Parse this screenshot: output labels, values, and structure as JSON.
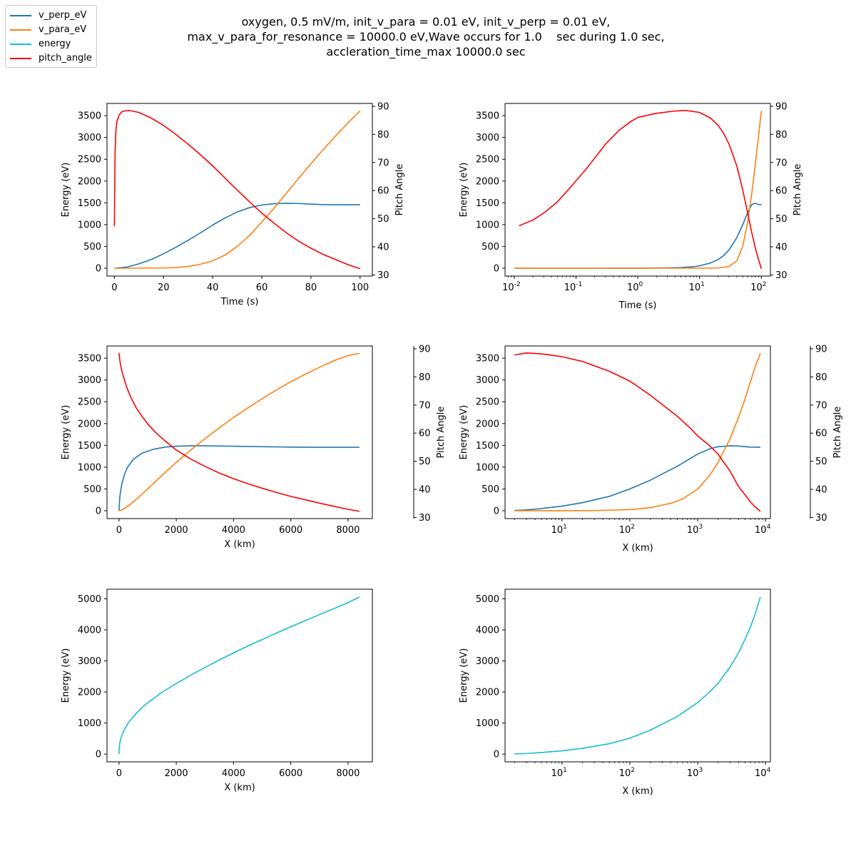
{
  "title_lines": [
    "oxygen, 0.5 mV/m, init_v_para = 0.01 eV, init_v_perp = 0.01 eV,",
    "max_v_para_for_resonance = 10000.0 eV,Wave occurs for 1.0    sec during 1.0 sec,",
    "accleration_time_max 10000.0 sec"
  ],
  "legend": [
    {
      "name": "v_perp_eV",
      "color": "#1f77b4"
    },
    {
      "name": "v_para_eV",
      "color": "#ff7f0e"
    },
    {
      "name": "energy",
      "color": "#17becf"
    },
    {
      "name": "pitch_angle",
      "color": "#ff0000"
    }
  ],
  "chart_data": [
    {
      "type": "line",
      "xscale": "linear",
      "xlabel": "Time (s)",
      "ylabel": "Energy (eV)",
      "y2label": "Pitch Angle",
      "xlim": [
        -3,
        105
      ],
      "ylim": [
        -180,
        3780
      ],
      "y2lim": [
        29.6,
        91
      ],
      "xticks": [
        0,
        20,
        40,
        60,
        80,
        100
      ],
      "yticks": [
        0,
        500,
        1000,
        1500,
        2000,
        2500,
        3000,
        3500
      ],
      "y2ticks": [
        30,
        40,
        50,
        60,
        70,
        80,
        90
      ],
      "series": [
        {
          "name": "v_perp_eV",
          "axis": "left",
          "color": "#1f77b4",
          "x": [
            0,
            5,
            10,
            15,
            20,
            25,
            30,
            35,
            40,
            45,
            50,
            55,
            60,
            65,
            70,
            75,
            80,
            85,
            90,
            95,
            100
          ],
          "y": [
            0,
            25,
            100,
            200,
            330,
            480,
            640,
            810,
            990,
            1150,
            1290,
            1390,
            1450,
            1480,
            1490,
            1485,
            1470,
            1460,
            1455,
            1455,
            1458
          ]
        },
        {
          "name": "v_para_eV",
          "axis": "left",
          "color": "#ff7f0e",
          "x": [
            0,
            10,
            20,
            25,
            30,
            35,
            40,
            45,
            50,
            55,
            60,
            65,
            70,
            75,
            80,
            85,
            90,
            95,
            100
          ],
          "y": [
            0,
            2,
            6,
            15,
            40,
            90,
            170,
            300,
            500,
            750,
            1060,
            1380,
            1720,
            2060,
            2400,
            2720,
            3030,
            3330,
            3610
          ]
        },
        {
          "name": "pitch_angle",
          "axis": "right",
          "color": "#ff0000",
          "x": [
            0,
            0.3,
            0.6,
            1,
            2,
            3,
            4,
            6,
            10,
            15,
            20,
            25,
            30,
            35,
            40,
            45,
            50,
            55,
            60,
            65,
            70,
            75,
            80,
            85,
            90,
            95,
            100
          ],
          "y": [
            47.3,
            74,
            81,
            84.5,
            87,
            88,
            88.3,
            88.5,
            87.8,
            85.8,
            83.2,
            80,
            76.5,
            72.8,
            68.8,
            64.5,
            60.2,
            56,
            52,
            48.4,
            45,
            42,
            39.5,
            37.3,
            35.5,
            33.7,
            32.2
          ]
        }
      ]
    },
    {
      "type": "line",
      "xscale": "log",
      "xlabel": "Time (s)",
      "ylabel": "Energy (eV)",
      "y2label": "Pitch Angle",
      "xlim": [
        0.0071,
        140
      ],
      "ylim": [
        -180,
        3780
      ],
      "y2lim": [
        29.6,
        91
      ],
      "xticks": [
        0.01,
        0.1,
        1,
        10,
        100
      ],
      "xticklabels": [
        "10-2",
        "10-1",
        "100",
        "101",
        "102"
      ],
      "yticks": [
        0,
        500,
        1000,
        1500,
        2000,
        2500,
        3000,
        3500
      ],
      "y2ticks": [
        30,
        40,
        50,
        60,
        70,
        80,
        90
      ],
      "series": [
        {
          "name": "v_perp_eV",
          "axis": "left",
          "color": "#1f77b4",
          "x": [
            0.01,
            0.1,
            1,
            3,
            5,
            8,
            10,
            15,
            20,
            25,
            30,
            40,
            50,
            60,
            70,
            80,
            90,
            100
          ],
          "y": [
            0,
            0,
            1,
            8,
            15,
            35,
            55,
            120,
            200,
            300,
            420,
            700,
            1000,
            1280,
            1460,
            1490,
            1460,
            1458
          ]
        },
        {
          "name": "v_para_eV",
          "axis": "left",
          "color": "#ff7f0e",
          "x": [
            0.01,
            1,
            10,
            20,
            30,
            40,
            50,
            60,
            70,
            80,
            90,
            100
          ],
          "y": [
            0,
            0,
            2,
            6,
            40,
            170,
            500,
            1060,
            1720,
            2400,
            3030,
            3610
          ]
        },
        {
          "name": "pitch_angle",
          "axis": "right",
          "color": "#ff0000",
          "x": [
            0.012,
            0.02,
            0.03,
            0.05,
            0.08,
            0.1,
            0.15,
            0.2,
            0.3,
            0.5,
            0.8,
            1,
            2,
            4,
            6,
            10,
            15,
            20,
            25,
            30,
            40,
            50,
            60,
            70,
            80,
            90,
            100
          ],
          "y": [
            47.5,
            49.5,
            52,
            56,
            61,
            63.5,
            68,
            71.5,
            76.5,
            81.5,
            84.8,
            86,
            87.5,
            88.3,
            88.5,
            87.8,
            85.8,
            83.2,
            80,
            76.5,
            68.8,
            60.2,
            52,
            45,
            39.5,
            35.5,
            32.2
          ]
        }
      ]
    },
    {
      "type": "line",
      "xscale": "linear",
      "xlabel": "X (km)",
      "ylabel": "Energy (eV)",
      "y2label": "Pitch Angle",
      "xlim": [
        -420,
        8850
      ],
      "ylim": [
        -180,
        3780
      ],
      "y2lim": [
        29.6,
        91
      ],
      "xticks": [
        0,
        2000,
        4000,
        6000,
        8000
      ],
      "yticks": [
        0,
        500,
        1000,
        1500,
        2000,
        2500,
        3000,
        3500
      ],
      "y2ticks": [
        30,
        40,
        50,
        60,
        70,
        80,
        90
      ],
      "series": [
        {
          "name": "v_perp_eV",
          "axis": "left",
          "color": "#1f77b4",
          "x": [
            0,
            20,
            50,
            100,
            200,
            300,
            500,
            800,
            1200,
            1600,
            2000,
            2500,
            3000,
            3500,
            4000,
            5000,
            6000,
            7000,
            8000,
            8400
          ],
          "y": [
            0,
            250,
            430,
            620,
            850,
            1000,
            1180,
            1320,
            1410,
            1460,
            1480,
            1490,
            1490,
            1485,
            1480,
            1470,
            1460,
            1455,
            1455,
            1458
          ]
        },
        {
          "name": "v_para_eV",
          "axis": "left",
          "color": "#ff7f0e",
          "x": [
            0,
            100,
            200,
            400,
            600,
            800,
            1000,
            1500,
            2000,
            2500,
            3000,
            3500,
            4000,
            4500,
            5000,
            5500,
            6000,
            6500,
            7000,
            7500,
            8000,
            8400
          ],
          "y": [
            0,
            20,
            60,
            150,
            260,
            380,
            500,
            810,
            1110,
            1390,
            1650,
            1900,
            2140,
            2360,
            2570,
            2770,
            2960,
            3130,
            3290,
            3440,
            3560,
            3610
          ]
        },
        {
          "name": "pitch_angle",
          "axis": "right",
          "color": "#ff0000",
          "x": [
            0,
            20,
            50,
            100,
            200,
            300,
            400,
            600,
            800,
            1000,
            1300,
            1600,
            2000,
            2500,
            3000,
            3500,
            4000,
            4500,
            5000,
            5500,
            6000,
            6500,
            7000,
            7500,
            8000,
            8400
          ],
          "y": [
            88.5,
            86.5,
            84.5,
            82,
            78.5,
            75.5,
            73,
            69,
            66,
            63.3,
            60,
            57.3,
            54,
            50.8,
            48.2,
            45.8,
            43.8,
            42,
            40.4,
            38.9,
            37.5,
            36.3,
            35.1,
            34,
            32.9,
            32.2
          ]
        }
      ]
    },
    {
      "type": "line",
      "xscale": "log",
      "xlabel": "X (km)",
      "ylabel": "Energy (eV)",
      "y2label": "Pitch Angle",
      "xlim": [
        1.45,
        11800
      ],
      "ylim": [
        -180,
        3780
      ],
      "y2lim": [
        29.6,
        91
      ],
      "xticks": [
        10,
        100,
        1000,
        10000
      ],
      "xticklabels": [
        "101",
        "102",
        "103",
        "104"
      ],
      "yticks": [
        0,
        500,
        1000,
        1500,
        2000,
        2500,
        3000,
        3500
      ],
      "y2ticks": [
        30,
        40,
        50,
        60,
        70,
        80,
        90
      ],
      "series": [
        {
          "name": "v_perp_eV",
          "axis": "left",
          "color": "#1f77b4",
          "x": [
            2,
            3,
            5,
            10,
            20,
            50,
            100,
            200,
            500,
            1000,
            1500,
            2000,
            3000,
            4000,
            5000,
            6000,
            8400
          ],
          "y": [
            5,
            20,
            50,
            105,
            185,
            330,
            500,
            700,
            1020,
            1300,
            1420,
            1470,
            1490,
            1485,
            1470,
            1460,
            1458
          ]
        },
        {
          "name": "v_para_eV",
          "axis": "left",
          "color": "#ff7f0e",
          "x": [
            2,
            10,
            30,
            100,
            200,
            400,
            600,
            1000,
            1500,
            2000,
            3000,
            4000,
            5000,
            6000,
            7000,
            8400
          ],
          "y": [
            0,
            1,
            4,
            25,
            70,
            170,
            270,
            500,
            810,
            1110,
            1650,
            2140,
            2570,
            2960,
            3290,
            3610
          ]
        },
        {
          "name": "pitch_angle",
          "axis": "right",
          "color": "#ff0000",
          "x": [
            2,
            3,
            5,
            10,
            20,
            50,
            100,
            200,
            500,
            800,
            1000,
            1500,
            2000,
            3000,
            4000,
            5000,
            6000,
            7000,
            8400
          ],
          "y": [
            87.8,
            88.5,
            88.2,
            87.2,
            85.5,
            82,
            78.5,
            73.5,
            66,
            61.5,
            59,
            55.5,
            52.5,
            46.5,
            41,
            38,
            35.5,
            33.8,
            32.2
          ]
        }
      ]
    },
    {
      "type": "line",
      "xscale": "linear",
      "xlabel": "X (km)",
      "ylabel": "Energy (eV)",
      "xlim": [
        -420,
        8850
      ],
      "ylim": [
        -250,
        5310
      ],
      "xticks": [
        0,
        2000,
        4000,
        6000,
        8000
      ],
      "yticks": [
        0,
        1000,
        2000,
        3000,
        4000,
        5000
      ],
      "series": [
        {
          "name": "energy",
          "axis": "left",
          "color": "#17becf",
          "x": [
            0,
            10,
            30,
            60,
            100,
            200,
            300,
            500,
            800,
            1000,
            1500,
            2000,
            2500,
            3000,
            3500,
            4000,
            4500,
            5000,
            5500,
            6000,
            6500,
            7000,
            7500,
            8000,
            8400
          ],
          "y": [
            0,
            230,
            370,
            490,
            600,
            810,
            970,
            1210,
            1500,
            1650,
            1990,
            2270,
            2540,
            2790,
            3030,
            3260,
            3480,
            3690,
            3900,
            4100,
            4300,
            4490,
            4680,
            4880,
            5060
          ]
        }
      ]
    },
    {
      "type": "line",
      "xscale": "log",
      "xlabel": "X (km)",
      "ylabel": "Energy (eV)",
      "xlim": [
        1.45,
        11800
      ],
      "ylim": [
        -250,
        5310
      ],
      "xticks": [
        10,
        100,
        1000,
        10000
      ],
      "xticklabels": [
        "101",
        "102",
        "103",
        "104"
      ],
      "yticks": [
        0,
        1000,
        2000,
        3000,
        4000,
        5000
      ],
      "series": [
        {
          "name": "energy",
          "axis": "left",
          "color": "#17becf",
          "x": [
            2,
            3,
            5,
            10,
            20,
            50,
            100,
            200,
            500,
            1000,
            1500,
            2000,
            3000,
            4000,
            5000,
            6000,
            7000,
            8400
          ],
          "y": [
            5,
            20,
            50,
            105,
            185,
            335,
            510,
            770,
            1210,
            1660,
            2000,
            2280,
            2800,
            3260,
            3700,
            4100,
            4490,
            5060
          ]
        }
      ]
    }
  ]
}
